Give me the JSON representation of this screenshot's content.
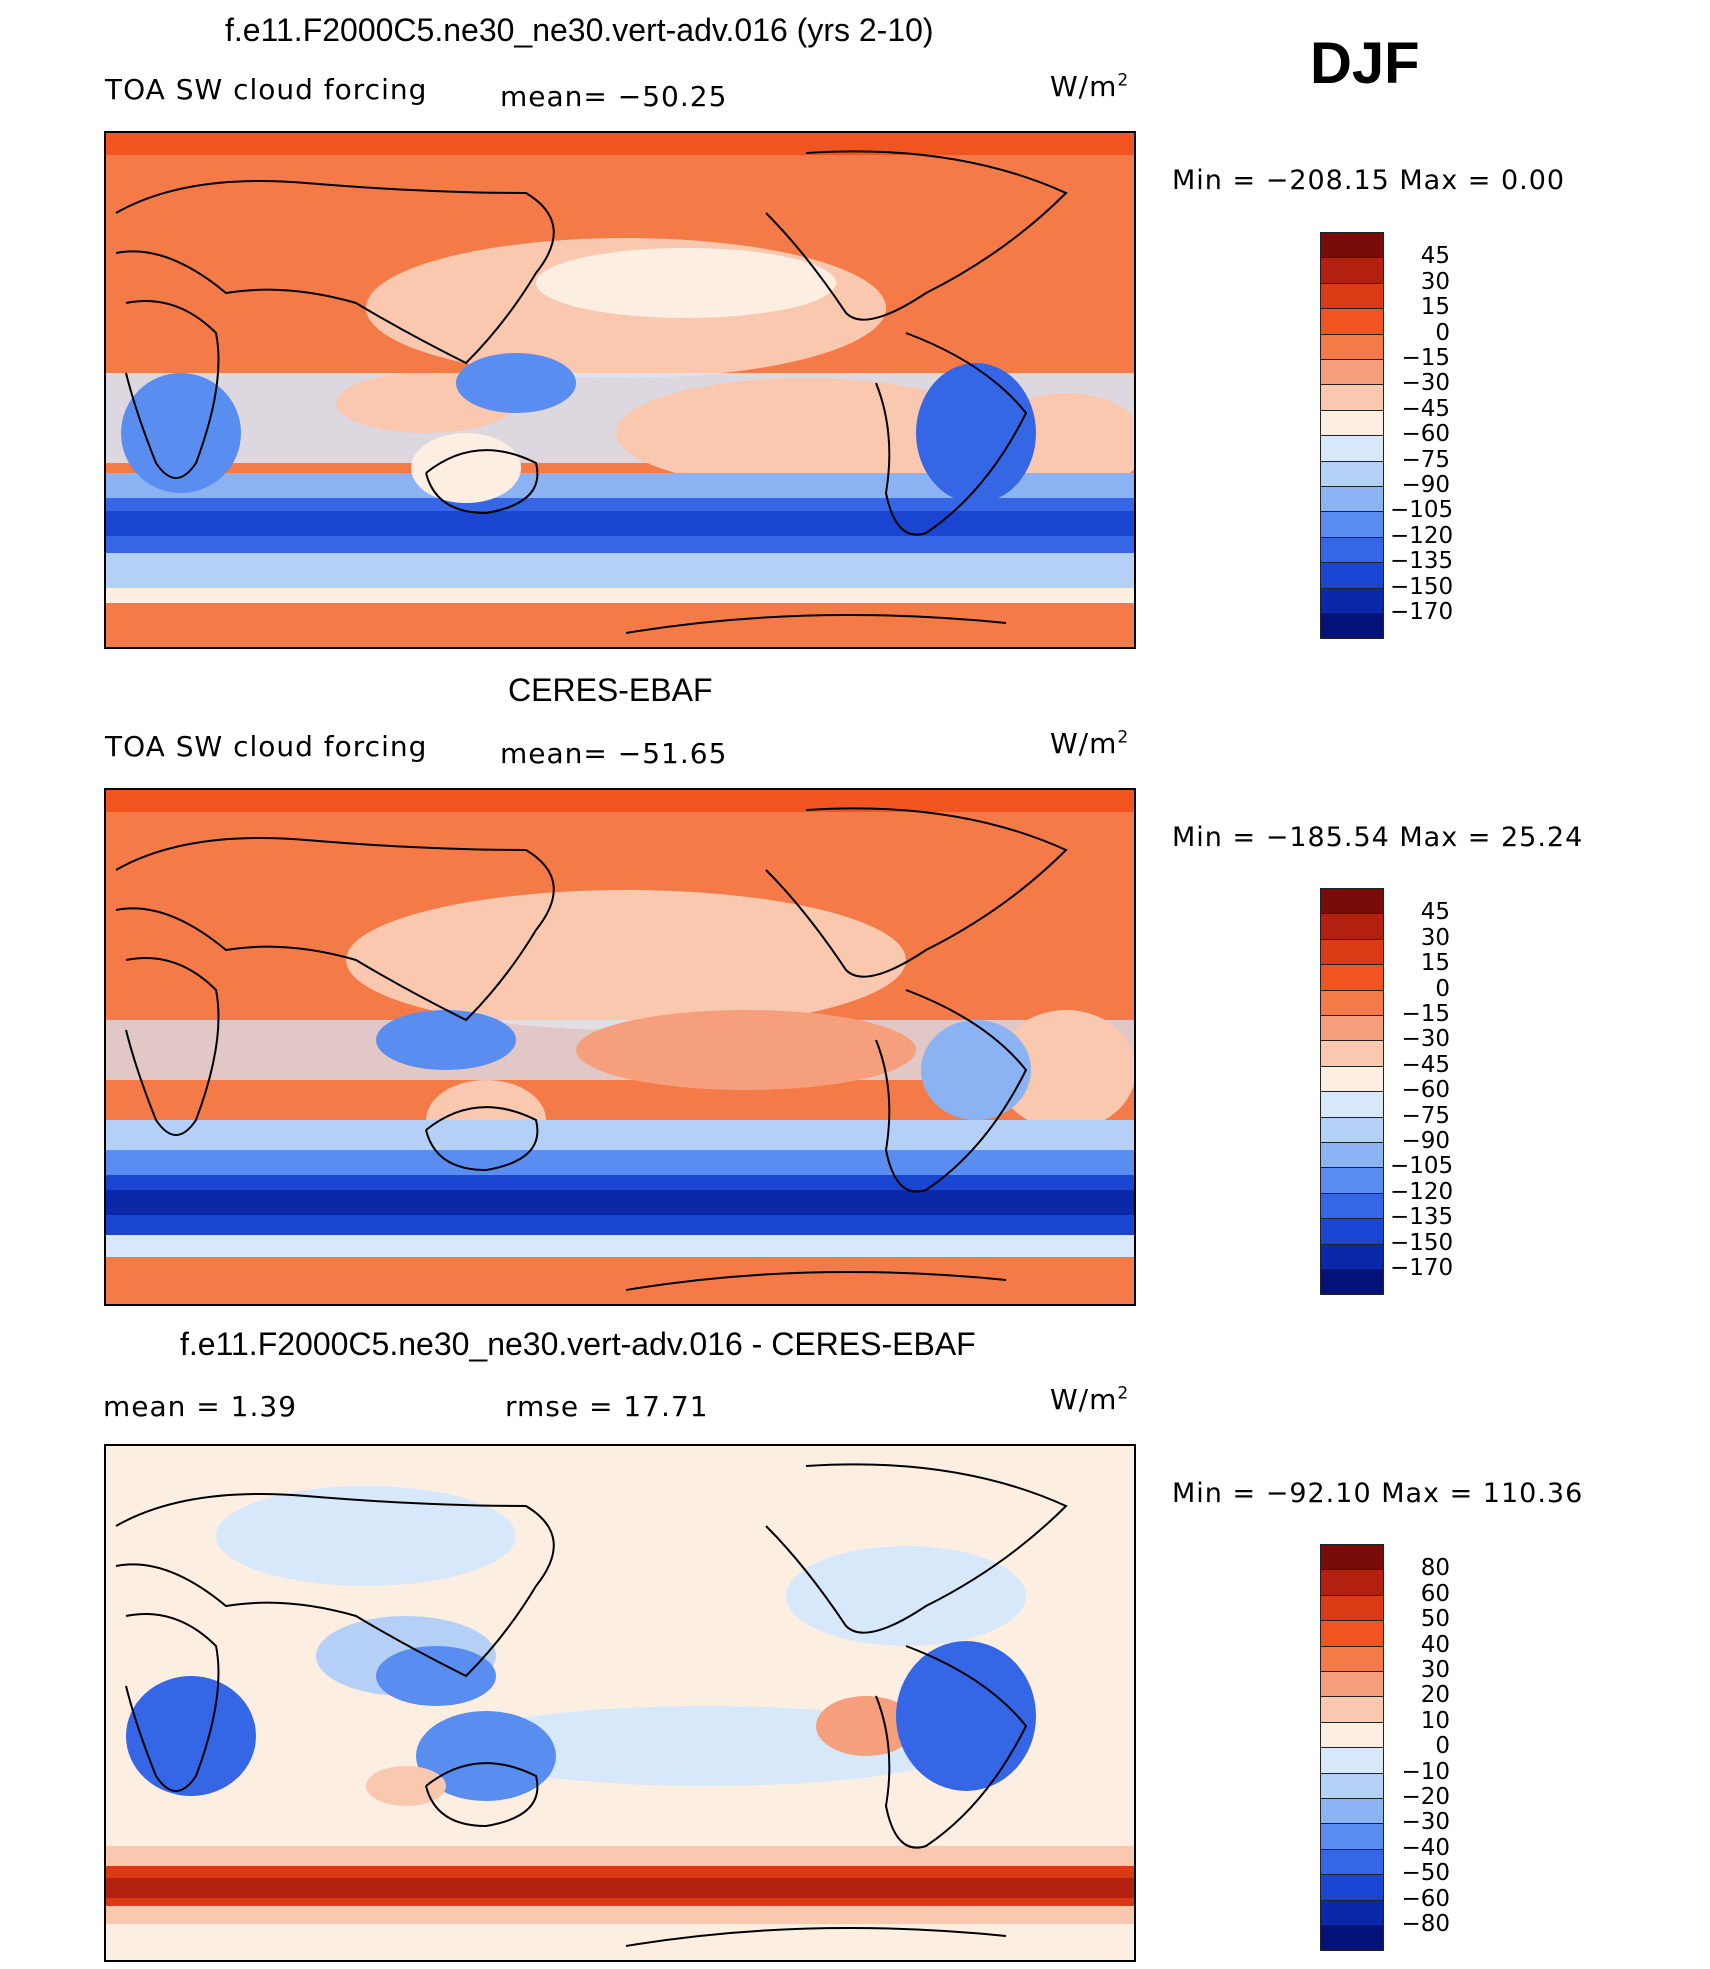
{
  "season": "DJF",
  "panels": [
    {
      "id": "model",
      "title": "f.e11.F2000C5.ne30_ne30.vert-adv.016 (yrs 2-10)",
      "left_label": "TOA SW cloud forcing",
      "mid_label": "mean= −50.25",
      "units": "W/m",
      "units_sup": "2",
      "minmax": "Min  =  −208.15  Max  =      0.00",
      "colorbar": [
        "45",
        "30",
        "15",
        "0",
        "−15",
        "−30",
        "−45",
        "−60",
        "−75",
        "−90",
        "−105",
        "−120",
        "−135",
        "−150",
        "−170"
      ]
    },
    {
      "id": "obs",
      "title": "CERES-EBAF",
      "left_label": "TOA SW cloud forcing",
      "mid_label": "mean= −51.65",
      "units": "W/m",
      "units_sup": "2",
      "minmax": "Min  =  −185.54  Max  =    25.24",
      "colorbar": [
        "45",
        "30",
        "15",
        "0",
        "−15",
        "−30",
        "−45",
        "−60",
        "−75",
        "−90",
        "−105",
        "−120",
        "−135",
        "−150",
        "−170"
      ]
    },
    {
      "id": "diff",
      "title": "f.e11.F2000C5.ne30_ne30.vert-adv.016 - CERES-EBAF",
      "left_label": "mean =     1.39",
      "mid_label": "rmse =    17.71",
      "units": "W/m",
      "units_sup": "2",
      "minmax": "Min  =  −92.10  Max  =  110.36",
      "colorbar": [
        "80",
        "60",
        "50",
        "40",
        "30",
        "20",
        "10",
        "0",
        "−10",
        "−20",
        "−30",
        "−40",
        "−50",
        "−60",
        "−80"
      ]
    }
  ],
  "colors": {
    "scale": [
      "#7a0b0b",
      "#b3200f",
      "#dc3a14",
      "#f2541f",
      "#f47a47",
      "#f59f7c",
      "#f9c8ae",
      "#fdeee2",
      "#d8e8fb",
      "#b5d0f7",
      "#8bb2f2",
      "#5a8df0",
      "#3566e6",
      "#1a45d0",
      "#0b28a8",
      "#04127a"
    ],
    "ocean_bg": "#f47a47",
    "polar": "#f2541f"
  }
}
